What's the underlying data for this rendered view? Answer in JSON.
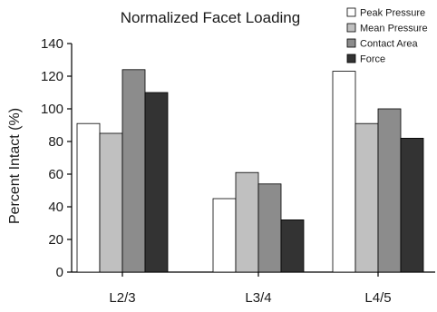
{
  "chart_data": {
    "type": "bar",
    "title": "Normalized Facet Loading",
    "xlabel": "",
    "ylabel": "Percent Intact (%)",
    "ylim": [
      0,
      140
    ],
    "yticks": [
      0,
      20,
      40,
      60,
      80,
      100,
      120,
      140
    ],
    "categories": [
      "L2/3",
      "L3/4",
      "L4/5"
    ],
    "series": [
      {
        "name": "Peak Pressure",
        "values": [
          91,
          45,
          123
        ],
        "color": "#ffffff"
      },
      {
        "name": "Mean Pressure",
        "values": [
          85,
          61,
          91
        ],
        "color": "#c0c0c0"
      },
      {
        "name": "Contact Area",
        "values": [
          124,
          54,
          100
        ],
        "color": "#8c8c8c"
      },
      {
        "name": "Force",
        "values": [
          110,
          32,
          82
        ],
        "color": "#333333"
      }
    ],
    "grid": false,
    "legend_position": "top-right"
  }
}
